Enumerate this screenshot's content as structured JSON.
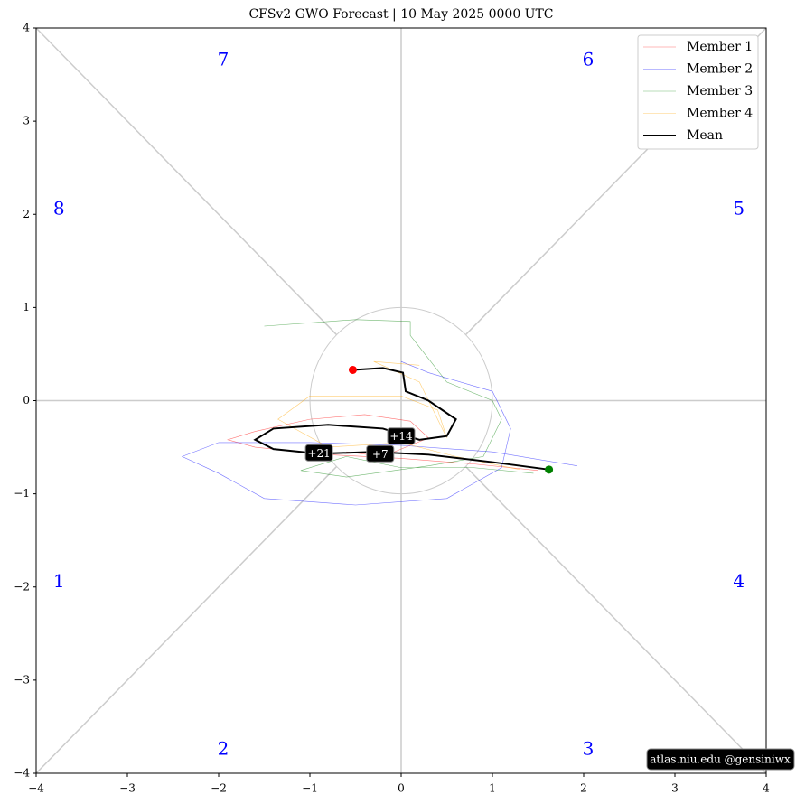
{
  "chart_data": {
    "type": "phase",
    "title": "CFSv2 GWO Forecast  |  10  May  2025 0000 UTC",
    "xlim": [
      -4,
      4
    ],
    "ylim": [
      -4,
      4
    ],
    "xticks": [
      {
        "value": -4,
        "label": "−4"
      },
      {
        "value": -3,
        "label": "−3"
      },
      {
        "value": -2,
        "label": "−2"
      },
      {
        "value": -1,
        "label": "−1"
      },
      0,
      1,
      2,
      3,
      4
    ],
    "yticks": [
      {
        "value": -4,
        "label": "−4"
      },
      {
        "value": -3,
        "label": "−3"
      },
      {
        "value": -2,
        "label": "−2"
      },
      {
        "value": -1,
        "label": "−1"
      },
      0,
      1,
      2,
      3,
      4
    ],
    "phase_labels": [
      "1",
      "2",
      "3",
      "4",
      "5",
      "6",
      "7",
      "8"
    ],
    "day_labels": [
      "+7",
      "+14",
      "+21"
    ],
    "credit": "atlas.niu.edu  @gensiniwx",
    "legend": "upper right",
    "series": [
      {
        "name": "Member 1",
        "color": "#ff0000",
        "x": [
          1.5,
          0.8,
          0.0,
          -0.8,
          -1.6,
          -1.9,
          -1.6,
          -1.0,
          -0.4,
          0.1,
          0.3,
          -0.2,
          -0.6
        ],
        "y": [
          -0.75,
          -0.68,
          -0.62,
          -0.58,
          -0.5,
          -0.42,
          -0.33,
          -0.2,
          -0.15,
          -0.22,
          -0.4,
          -0.6,
          -0.55
        ]
      },
      {
        "name": "Member 2",
        "color": "#0000ff",
        "x": [
          1.93,
          1.0,
          0.0,
          -1.0,
          -2.0,
          -2.4,
          -2.0,
          -1.5,
          -0.5,
          0.5,
          1.1,
          1.2,
          1.0,
          0.3,
          0.0
        ],
        "y": [
          -0.7,
          -0.55,
          -0.48,
          -0.45,
          -0.45,
          -0.6,
          -0.78,
          -1.05,
          -1.12,
          -1.05,
          -0.72,
          -0.3,
          0.1,
          0.3,
          0.42
        ]
      },
      {
        "name": "Member 3",
        "color": "#008000",
        "x": [
          1.45,
          0.8,
          0.0,
          -0.6,
          -1.1,
          -0.6,
          0.3,
          0.9,
          1.1,
          1.0,
          0.5,
          0.1,
          0.1,
          -0.5,
          -1.5
        ],
        "y": [
          -0.78,
          -0.72,
          -0.72,
          -0.6,
          -0.75,
          -0.82,
          -0.7,
          -0.6,
          -0.2,
          0.0,
          0.2,
          0.7,
          0.85,
          0.87,
          0.8
        ]
      },
      {
        "name": "Member 4",
        "color": "#ffa500",
        "x": [
          1.3,
          0.6,
          0.0,
          -0.8,
          -1.35,
          -1.0,
          0.0,
          0.4,
          0.5,
          0.2,
          -0.3,
          0.2
        ],
        "y": [
          -0.74,
          -0.6,
          -0.45,
          -0.5,
          -0.2,
          0.05,
          0.05,
          -0.1,
          -0.4,
          0.2,
          0.42,
          0.38
        ]
      },
      {
        "name": "Mean",
        "color": "#000000",
        "x": [
          1.62,
          1.0,
          0.3,
          -0.3,
          -0.9,
          -1.4,
          -1.6,
          -1.4,
          -0.8,
          -0.2,
          0.2,
          0.5,
          0.6,
          0.3,
          0.05,
          0.02,
          -0.2,
          -0.53
        ],
        "y": [
          -0.74,
          -0.66,
          -0.58,
          -0.55,
          -0.57,
          -0.52,
          -0.42,
          -0.3,
          -0.26,
          -0.3,
          -0.42,
          -0.38,
          -0.2,
          0.0,
          0.1,
          0.3,
          0.35,
          0.33
        ]
      }
    ]
  }
}
